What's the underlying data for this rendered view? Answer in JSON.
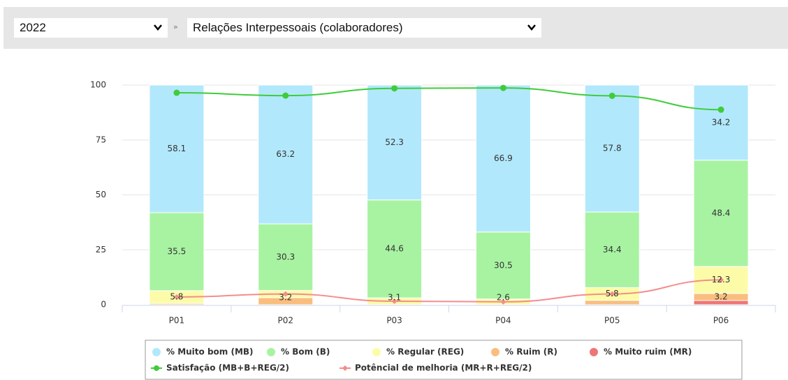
{
  "header": {
    "year": "2022",
    "separator": "»",
    "topic": "Relações Interpessoais (colaboradores)"
  },
  "chart_data": {
    "type": "bar",
    "stacked": true,
    "categories": [
      "P01",
      "P02",
      "P03",
      "P04",
      "P05",
      "P06"
    ],
    "ylim": [
      0,
      100
    ],
    "yticks": [
      0,
      25,
      50,
      75,
      100
    ],
    "grid": true,
    "series": [
      {
        "name": "% Muito ruim (MR)",
        "color": "#f07575",
        "values": [
          0,
          0,
          0,
          0,
          0,
          1.9
        ],
        "value_labels": [
          null,
          null,
          null,
          null,
          null,
          null
        ]
      },
      {
        "name": "% Ruim (R)",
        "color": "#f9be7e",
        "values": [
          0.6,
          3.2,
          0,
          0,
          2.0,
          3.2
        ],
        "value_labels": [
          null,
          "3.2",
          null,
          null,
          null,
          "3.2"
        ]
      },
      {
        "name": "% Regular (REG)",
        "color": "#fcfca8",
        "values": [
          5.8,
          3.3,
          3.1,
          2.6,
          5.8,
          12.3
        ],
        "value_labels": [
          "5.8",
          null,
          "3.1",
          "2.6",
          "5.8",
          "12.3"
        ]
      },
      {
        "name": "% Bom (B)",
        "color": "#a8f3a2",
        "values": [
          35.5,
          30.3,
          44.6,
          30.5,
          34.4,
          48.4
        ],
        "value_labels": [
          "35.5",
          "30.3",
          "44.6",
          "30.5",
          "34.4",
          "48.4"
        ]
      },
      {
        "name": "% Muito bom (MB)",
        "color": "#b2e8fb",
        "values": [
          58.1,
          63.2,
          52.3,
          66.9,
          57.8,
          34.2
        ],
        "value_labels": [
          "58.1",
          "63.2",
          "52.3",
          "66.9",
          "57.8",
          "34.2"
        ]
      },
      {
        "name": "Satisfação (MB+B+REG/2)",
        "type": "line",
        "color": "#3fcc3a",
        "values": [
          96.5,
          95.2,
          98.5,
          98.7,
          95.1,
          88.8
        ]
      },
      {
        "name": "Potêncial de melhoria (MR+R+REG/2)",
        "type": "line",
        "color": "#f58c8c",
        "values": [
          3.5,
          4.9,
          1.6,
          1.3,
          4.9,
          11.3
        ]
      }
    ],
    "legend_order": [
      4,
      3,
      2,
      1,
      0,
      5,
      6
    ]
  }
}
